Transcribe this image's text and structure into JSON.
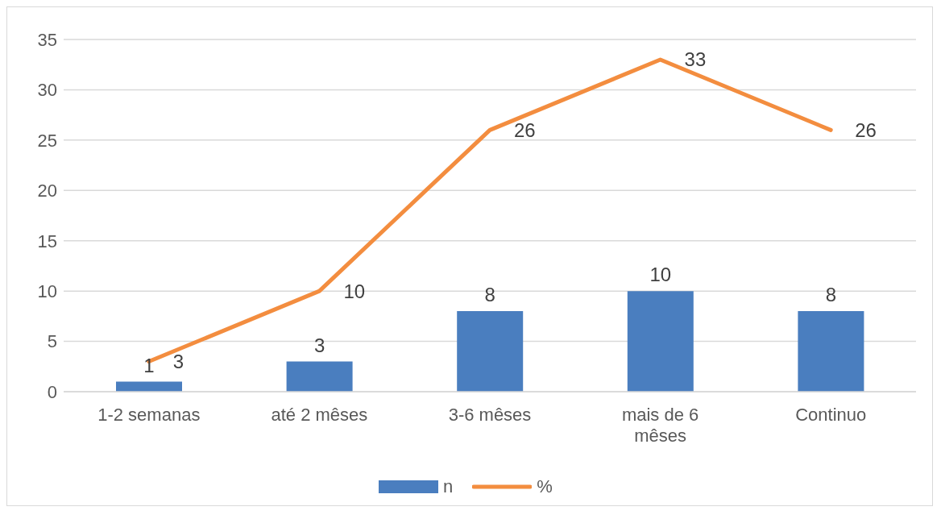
{
  "chart_data": {
    "type": "bar",
    "categories": [
      "1-2 semanas",
      "até 2 mêses",
      "3-6 mêses",
      "mais de 6 mêses",
      "Continuo"
    ],
    "series": [
      {
        "name": "n",
        "color": "#4a7ebf",
        "values": [
          1,
          3,
          8,
          10,
          8
        ]
      },
      {
        "name": "%",
        "type": "line",
        "color": "#f38d3f",
        "values": [
          3,
          10,
          26,
          33,
          26
        ]
      }
    ],
    "ylim": [
      0,
      35
    ],
    "yticks": [
      0,
      5,
      10,
      15,
      20,
      25,
      30,
      35
    ],
    "grid": "y",
    "legend": "bottom",
    "data_labels": true
  }
}
